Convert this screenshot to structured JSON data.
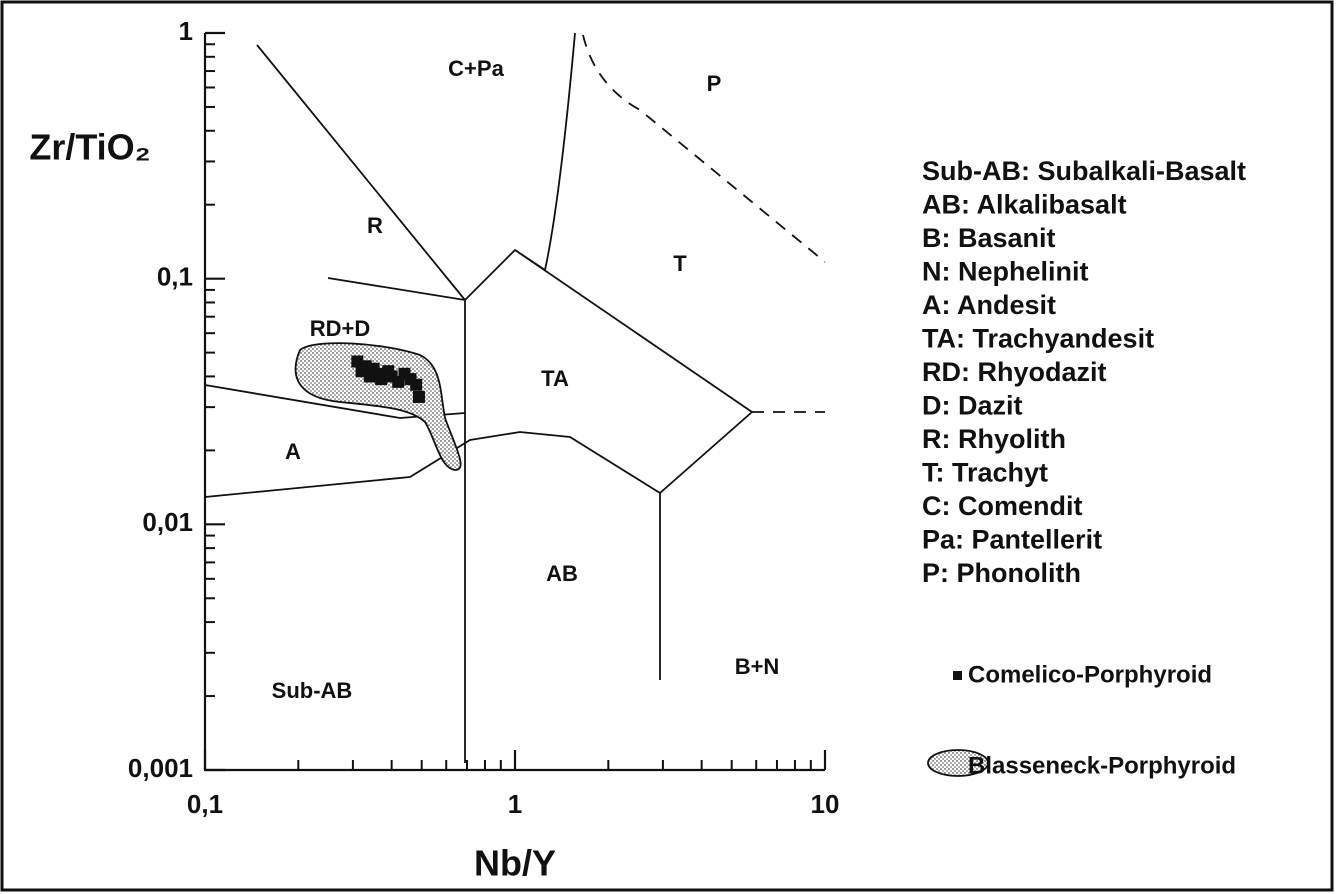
{
  "chart_data": {
    "type": "scatter",
    "xlabel": "Nb/Y",
    "ylabel": "Zr/TiO₂",
    "log_x": true,
    "log_y": true,
    "xlim": [
      0.1,
      10
    ],
    "ylim": [
      0.001,
      1
    ],
    "xticks": [
      {
        "value": 0.1,
        "label": "0,1"
      },
      1,
      10
    ],
    "yticks": [
      {
        "value": 0.001,
        "label": "0,001"
      },
      {
        "value": 0.01,
        "label": "0,01"
      },
      {
        "value": 0.1,
        "label": "0,1"
      },
      1
    ],
    "xminorticks": [
      0.2,
      0.3,
      0.4,
      0.5,
      0.6,
      0.7,
      0.8,
      0.9,
      2,
      3,
      4,
      5,
      6,
      7,
      8,
      9
    ],
    "yminorticks": [
      0.002,
      0.003,
      0.004,
      0.005,
      0.006,
      0.007,
      0.008,
      0.009,
      0.02,
      0.03,
      0.04,
      0.05,
      0.06,
      0.07,
      0.08,
      0.09,
      0.2,
      0.3,
      0.4,
      0.5,
      0.6,
      0.7,
      0.8,
      0.9
    ],
    "field_labels": [
      "C+Pa",
      "P",
      "R",
      "T",
      "RD+D",
      "TA",
      "A",
      "AB",
      "B+N",
      "Sub-AB"
    ],
    "definitions": [
      "Sub-AB: Subalkali-Basalt",
      "AB: Alkalibasalt",
      "B: Basanit",
      "N: Nephelinit",
      "A: Andesit",
      "TA: Trachyandesit",
      "RD: Rhyodazit",
      "D: Dazit",
      "R: Rhyolith",
      "T: Trachyt",
      "C: Comendit",
      "Pa: Pantellerit",
      "P: Phonolith"
    ],
    "series": [
      {
        "name": "Comelico-Porphyroid",
        "color": "#111111",
        "x": [
          0.31,
          0.32,
          0.33,
          0.34,
          0.35,
          0.36,
          0.37,
          0.39,
          0.4,
          0.42,
          0.44,
          0.46,
          0.48,
          0.49
        ],
        "values": [
          0.046,
          0.042,
          0.044,
          0.04,
          0.043,
          0.041,
          0.039,
          0.042,
          0.04,
          0.038,
          0.041,
          0.039,
          0.037,
          0.033
        ]
      }
    ],
    "regions": [
      {
        "name": "Blasseneck-Porphyroid"
      }
    ]
  }
}
